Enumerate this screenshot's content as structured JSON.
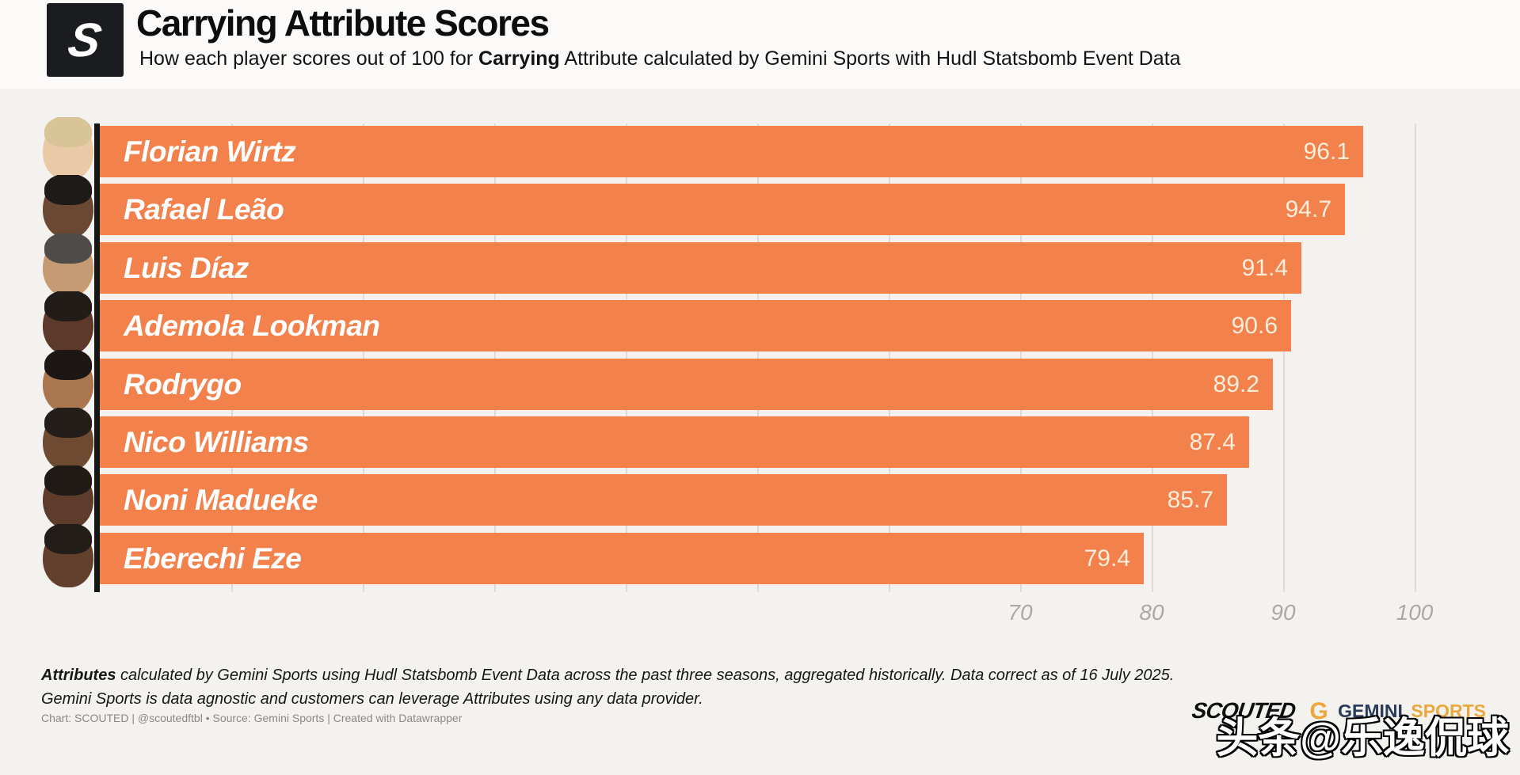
{
  "header": {
    "logo_letter": "S",
    "title": "Carrying Attribute Scores",
    "subtitle_pre": "How each player scores out of 100 for ",
    "subtitle_bold": "Carrying",
    "subtitle_post": " Attribute calculated by Gemini Sports with Hudl Statsbomb Event Data"
  },
  "chart_data": {
    "type": "bar",
    "orientation": "horizontal",
    "title": "Carrying Attribute Scores",
    "categories": [
      "Florian Wirtz",
      "Rafael Leão",
      "Luis Díaz",
      "Ademola Lookman",
      "Rodrygo",
      "Nico Williams",
      "Noni Madueke",
      "Eberechi Eze"
    ],
    "values": [
      96.1,
      94.7,
      91.4,
      90.6,
      89.2,
      87.4,
      85.7,
      79.4
    ],
    "players": [
      {
        "name": "Florian Wirtz",
        "value": 96.1,
        "value_label": "96.1",
        "skin": "#E9C9A6",
        "hair": "#D8C496"
      },
      {
        "name": "Rafael Leão",
        "value": 94.7,
        "value_label": "94.7",
        "skin": "#6B4833",
        "hair": "#1E1A17"
      },
      {
        "name": "Luis Díaz",
        "value": 91.4,
        "value_label": "91.4",
        "skin": "#C69A72",
        "hair": "#4E4C49"
      },
      {
        "name": "Ademola Lookman",
        "value": 90.6,
        "value_label": "90.6",
        "skin": "#5C392B",
        "hair": "#221C18"
      },
      {
        "name": "Rodrygo",
        "value": 89.2,
        "value_label": "89.2",
        "skin": "#A9764F",
        "hair": "#1C1714"
      },
      {
        "name": "Nico Williams",
        "value": 87.4,
        "value_label": "87.4",
        "skin": "#6E4A33",
        "hair": "#241E1A"
      },
      {
        "name": "Noni Madueke",
        "value": 85.7,
        "value_label": "85.7",
        "skin": "#5E3C2B",
        "hair": "#201A16"
      },
      {
        "name": "Eberechi Eze",
        "value": 79.4,
        "value_label": "79.4",
        "skin": "#63402E",
        "hair": "#231D19"
      }
    ],
    "xlim": [
      0,
      100
    ],
    "tick_labels": [
      "70",
      "80",
      "90",
      "100"
    ],
    "tick_values": [
      70,
      80,
      90,
      100
    ],
    "gridline_step": 10,
    "grid": true,
    "legend": "none",
    "bar_color": "#F3814C",
    "name_label_color": "#FFFFFF",
    "value_label_color": "#F9EEDC",
    "axis_line_color": "#161616",
    "tick_label_color": "#ACA9A4"
  },
  "footer": {
    "note_bold": "Attributes",
    "note_rest": " calculated by Gemini Sports using Hudl Statsbomb Event Data across the past three seasons, aggregated historically. Data correct as of 16 July 2025.",
    "note_line2": "Gemini Sports is data agnostic and customers can leverage Attributes using any data provider.",
    "byline": "Chart: SCOUTED | @scoutedftbl • Source: Gemini Sports | Created with Datawrapper"
  },
  "brand": {
    "scouted": "SCOUTED",
    "gemini_g": "G",
    "gemini": "GEMINI",
    "sports": "SPORTS"
  },
  "watermark": "头条@乐逸侃球"
}
